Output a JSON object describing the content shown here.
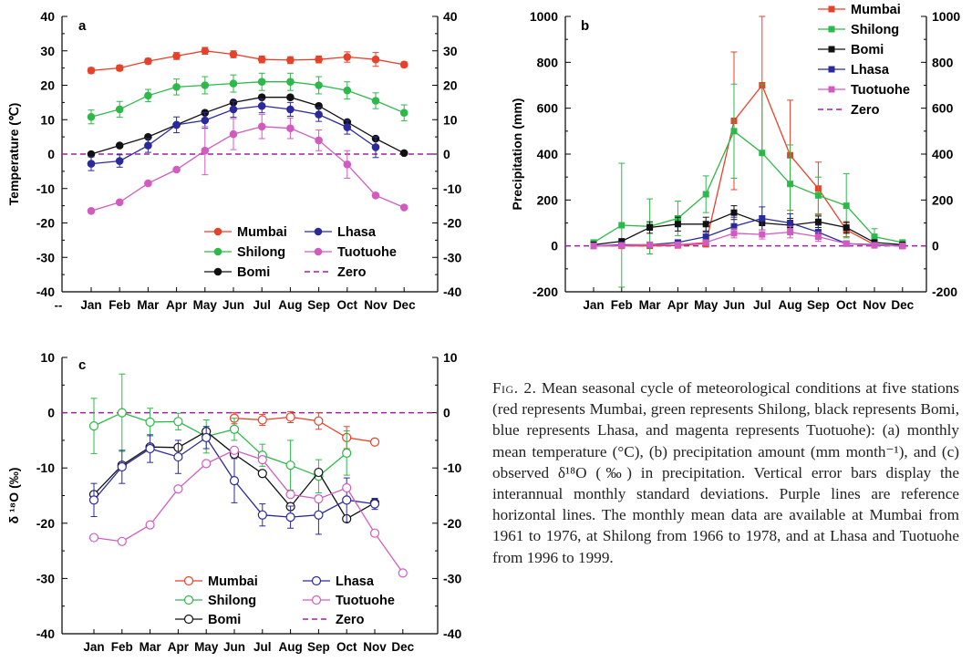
{
  "months": [
    "Jan",
    "Feb",
    "Mar",
    "Apr",
    "May",
    "Jun",
    "Jul",
    "Aug",
    "Sep",
    "Oct",
    "Nov",
    "Dec"
  ],
  "colors": {
    "Mumbai": "#e8412a",
    "Shilong": "#2db84a",
    "Bomi": "#111111",
    "Lhasa": "#2a2a9c",
    "Tuotuohe": "#d35bc0",
    "Zero": "#a020a0"
  },
  "chart_data": [
    {
      "panel": "a",
      "type": "line",
      "marker_fill": "filled",
      "ylabel": "Temperature (℃)",
      "ylim": [
        -40,
        40
      ],
      "ticks": [
        -40,
        -30,
        -20,
        -10,
        0,
        10,
        20,
        30,
        40
      ],
      "extra_xtick": "--",
      "legend": {
        "cols": [
          [
            "Mumbai",
            "Shilong",
            "Bomi"
          ],
          [
            "Lhasa",
            "Tuotuohe",
            "Zero"
          ]
        ]
      },
      "series": [
        {
          "name": "Mumbai",
          "values": [
            24.3,
            25,
            27,
            28.5,
            30,
            29,
            27.5,
            27.3,
            27.5,
            28.2,
            27.5,
            26
          ],
          "err": [
            0.8,
            0.8,
            0.8,
            1,
            1,
            1,
            1,
            1,
            1,
            1.5,
            2,
            0.8
          ]
        },
        {
          "name": "Shilong",
          "values": [
            10.8,
            13,
            17,
            19.5,
            20,
            20.5,
            21,
            21,
            20,
            18.5,
            15.5,
            12
          ],
          "err": [
            2,
            2.3,
            1.8,
            2.3,
            2.5,
            2.5,
            2.5,
            2.5,
            2.5,
            2.5,
            2.3,
            2.3
          ]
        },
        {
          "name": "Bomi",
          "values": [
            0,
            2.5,
            5,
            8.5,
            12,
            15,
            16.5,
            16.5,
            14,
            9.3,
            4.5,
            0.3
          ],
          "err": [
            0,
            0,
            0,
            0,
            0,
            0,
            0,
            0,
            0,
            0,
            0,
            0
          ]
        },
        {
          "name": "Lhasa",
          "values": [
            -2.8,
            -2,
            2.5,
            8.5,
            9.8,
            13,
            14,
            13,
            11.5,
            7.8,
            2,
            null
          ],
          "err": [
            2,
            1.8,
            2,
            2.3,
            2.3,
            2.3,
            2,
            2,
            2,
            2,
            3,
            0
          ]
        },
        {
          "name": "Tuotuohe",
          "values": [
            -16.5,
            -14,
            -8.5,
            -4.5,
            1,
            5.8,
            8,
            7.5,
            4,
            -3,
            -12,
            -15.5
          ],
          "err": [
            0,
            0,
            0,
            0,
            7,
            4.5,
            3.5,
            3,
            3,
            4,
            0,
            0
          ]
        }
      ]
    },
    {
      "panel": "b",
      "type": "line",
      "marker_fill": "square",
      "ylabel": "Precipitation (mm)",
      "ylim": [
        -200,
        1000
      ],
      "ticks": [
        -200,
        0,
        200,
        400,
        600,
        800,
        1000
      ],
      "legend": {
        "cols": [
          [
            "Mumbai",
            "Shilong",
            "Bomi",
            "Lhasa",
            "Tuotuohe",
            "Zero"
          ]
        ]
      },
      "series": [
        {
          "name": "Mumbai",
          "values": [
            0,
            0,
            0,
            2,
            10,
            545,
            700,
            395,
            250,
            70,
            5,
            0
          ],
          "err": [
            0,
            0,
            0,
            3,
            15,
            300,
            300,
            240,
            115,
            30,
            5,
            0
          ]
        },
        {
          "name": "Shilong",
          "values": [
            15,
            90,
            85,
            120,
            225,
            500,
            405,
            270,
            220,
            175,
            40,
            15
          ],
          "err": [
            5,
            270,
            120,
            75,
            80,
            205,
            300,
            170,
            80,
            140,
            35,
            10
          ]
        },
        {
          "name": "Bomi",
          "values": [
            5,
            20,
            80,
            95,
            95,
            145,
            100,
            90,
            105,
            80,
            15,
            5
          ],
          "err": [
            3,
            8,
            25,
            30,
            30,
            30,
            30,
            30,
            25,
            25,
            10,
            3
          ]
        },
        {
          "name": "Lhasa",
          "values": [
            0,
            5,
            5,
            15,
            40,
            85,
            120,
            100,
            60,
            10,
            5,
            0
          ],
          "err": [
            0,
            3,
            3,
            10,
            20,
            40,
            50,
            40,
            30,
            10,
            3,
            0
          ]
        },
        {
          "name": "Tuotuohe",
          "values": [
            0,
            2,
            5,
            5,
            15,
            55,
            50,
            60,
            40,
            10,
            2,
            0
          ],
          "err": [
            0,
            2,
            3,
            3,
            10,
            20,
            20,
            25,
            20,
            8,
            2,
            0
          ]
        }
      ]
    },
    {
      "panel": "c",
      "type": "line",
      "marker_fill": "open",
      "ylabel": "δ ¹⁸O (‰)",
      "ylim": [
        -40,
        10
      ],
      "ticks": [
        -40,
        -30,
        -20,
        -10,
        0,
        10
      ],
      "legend": {
        "cols": [
          [
            "Mumbai",
            "Shilong",
            "Bomi"
          ],
          [
            "Lhasa",
            "Tuotuohe",
            "Zero"
          ]
        ]
      },
      "series": [
        {
          "name": "Mumbai",
          "values": [
            null,
            null,
            null,
            null,
            null,
            -1,
            -1.3,
            -0.8,
            -1.5,
            -4.5,
            -5.3,
            null
          ],
          "err": [
            0,
            0,
            0,
            0,
            0,
            1,
            1,
            1,
            1.5,
            2,
            0,
            0
          ]
        },
        {
          "name": "Shilong",
          "values": [
            -2.4,
            0,
            -1.7,
            -1.6,
            -4.3,
            -3,
            -7.7,
            -9.5,
            -11.5,
            -7.3,
            null,
            null
          ],
          "err": [
            5,
            7,
            2.5,
            1.5,
            3,
            2,
            2,
            4.5,
            3,
            4,
            0,
            0
          ]
        },
        {
          "name": "Bomi",
          "values": [
            -14.8,
            -9.5,
            -6.2,
            -6.3,
            -3.4,
            -7.5,
            -11,
            -17,
            -10.8,
            -19.2,
            -16.3,
            null
          ],
          "err": [
            0,
            0,
            0,
            0,
            0,
            0,
            0,
            0,
            0,
            0,
            0,
            0
          ]
        },
        {
          "name": "Lhasa",
          "values": [
            -15.8,
            -9.8,
            -6.5,
            -8,
            -4.5,
            -12.3,
            -18.5,
            -18.9,
            -18.5,
            -15.8,
            -16.5,
            null
          ],
          "err": [
            3,
            3,
            2.5,
            3,
            2,
            4,
            2,
            2,
            3.5,
            4,
            1,
            0
          ]
        },
        {
          "name": "Tuotuohe",
          "values": [
            -22.6,
            -23.3,
            -20.3,
            -13.8,
            -9.2,
            -6.8,
            -8.5,
            -14.8,
            -15.6,
            -13.6,
            -21.8,
            -29
          ]
        }
      ]
    }
  ],
  "caption": {
    "label": "Fig. 2.",
    "text": "Mean seasonal cycle of meteorological conditions at five stations (red represents Mumbai, green represents Shilong, black represents Bomi, blue represents Lhasa, and magenta represents Tuotuohe): (a) monthly mean temperature (°C), (b) precipitation amount (mm month⁻¹), and (c) observed δ¹⁸O (‰) in precipitation. Vertical error bars display the interannual monthly standard deviations. Purple lines are reference horizontal lines. The monthly mean data are available at Mumbai from 1961 to 1976, at Shilong from 1966 to 1978, and at Lhasa and Tuotuohe from 1996 to 1999."
  }
}
